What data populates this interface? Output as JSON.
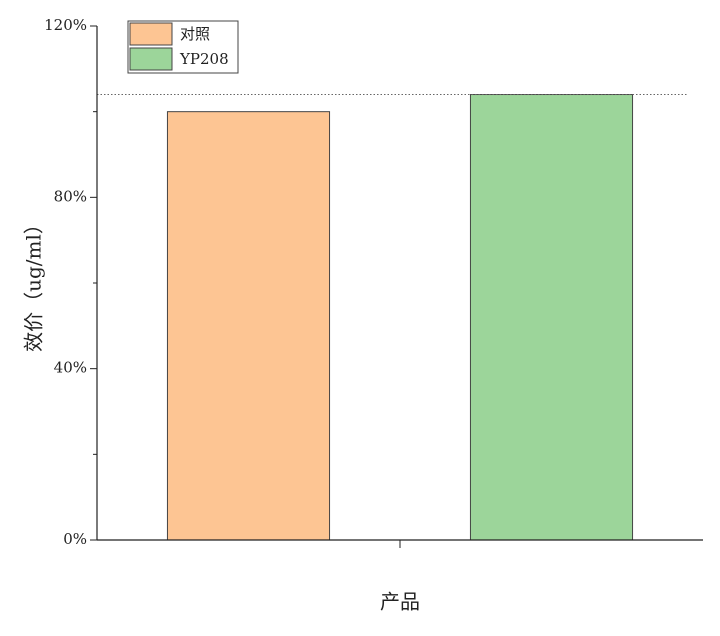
{
  "chart_data": {
    "type": "bar",
    "x_label": "产品",
    "y_label": "效价（ug/ml）",
    "categories": [
      null
    ],
    "series": [
      {
        "name": "对照",
        "color": "#fdc593",
        "values": [
          100
        ]
      },
      {
        "name": "YP208",
        "color": "#9cd59a",
        "values": [
          104
        ]
      }
    ],
    "ylim": [
      0,
      120
    ],
    "yticks": [
      {
        "value": 0,
        "label": "0%"
      },
      {
        "value": 40,
        "label": "40%"
      },
      {
        "value": 80,
        "label": "80%"
      },
      {
        "value": 120,
        "label": "120%"
      }
    ],
    "yminorticks": [
      20,
      60,
      100
    ],
    "legend": "upper left"
  }
}
